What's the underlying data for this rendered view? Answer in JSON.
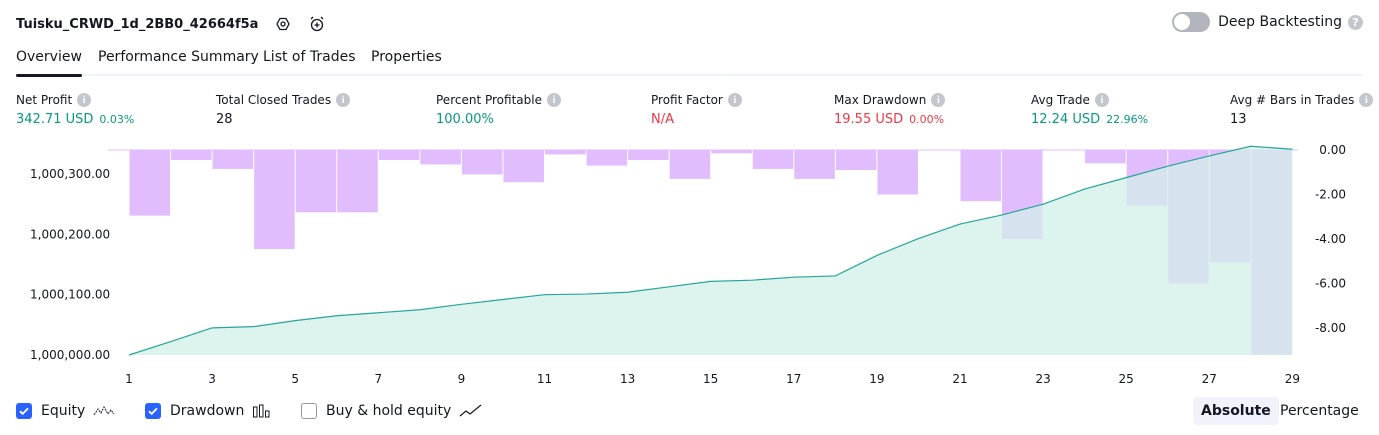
{
  "header": {
    "title": "Tuisku_CRWD_1d_2BB0_42664f5a",
    "deep_backtesting_label": "Deep Backtesting",
    "deep_backtesting_on": false
  },
  "tabs": [
    {
      "label": "Overview",
      "active": true
    },
    {
      "label": "Performance Summary",
      "active": false
    },
    {
      "label": "List of Trades",
      "active": false
    },
    {
      "label": "Properties",
      "active": false
    }
  ],
  "metrics": [
    {
      "label": "Net Profit",
      "value": "342.71 USD",
      "sub": "0.03%",
      "color": "#089981"
    },
    {
      "label": "Total Closed Trades",
      "value": "28",
      "sub": "",
      "color": "#131722"
    },
    {
      "label": "Percent Profitable",
      "value": "100.00%",
      "sub": "",
      "color": "#089981"
    },
    {
      "label": "Profit Factor",
      "value": "N/A",
      "sub": "",
      "color": "#f23645"
    },
    {
      "label": "Max Drawdown",
      "value": "19.55 USD",
      "sub": "0.00%",
      "color": "#f23645"
    },
    {
      "label": "Avg Trade",
      "value": "12.24 USD",
      "sub": "22.96%",
      "color": "#089981"
    },
    {
      "label": "Avg # Bars in Trades",
      "value": "13",
      "sub": "",
      "color": "#131722"
    }
  ],
  "legend": {
    "equity": {
      "label": "Equity",
      "checked": true
    },
    "drawdown": {
      "label": "Drawdown",
      "checked": true
    },
    "buy_hold": {
      "label": "Buy & hold equity",
      "checked": false
    }
  },
  "scale_toggle": {
    "absolute": "Absolute",
    "percentage": "Percentage",
    "selected": "Absolute"
  },
  "colors": {
    "equity_line": "#26a69a",
    "equity_fill": "#d1efe8",
    "drawdown_bar": "#e1bdfd",
    "accent": "#2962ff"
  },
  "chart_data": {
    "type": "bar+area",
    "x": [
      1,
      2,
      3,
      4,
      5,
      6,
      7,
      8,
      9,
      10,
      11,
      12,
      13,
      14,
      15,
      16,
      17,
      18,
      19,
      20,
      21,
      22,
      23,
      24,
      25,
      26,
      27,
      28,
      29
    ],
    "x_tick_labels": [
      "1",
      "3",
      "5",
      "7",
      "9",
      "11",
      "13",
      "15",
      "17",
      "19",
      "21",
      "23",
      "25",
      "27",
      "29"
    ],
    "series": [
      {
        "axis": "left",
        "kind": "area",
        "values": [
          1000000,
          1000022,
          1000045,
          1000047,
          1000057,
          1000065,
          1000070,
          1000075,
          1000084,
          1000092,
          1000100,
          1000101,
          1000104,
          1000113,
          1000122,
          1000124,
          1000129,
          1000131,
          1000165,
          1000193,
          1000217,
          1000232,
          1000250,
          1000275,
          1000294,
          1000313,
          1000330,
          1000346,
          1000341
        ]
      },
      {
        "axis": "right",
        "kind": "bar",
        "values": [
          0,
          -2.95,
          -0.45,
          -0.85,
          -4.45,
          -2.8,
          -2.8,
          -0.45,
          -0.65,
          -1.1,
          -1.45,
          -0.2,
          -0.7,
          -0.45,
          -1.3,
          -0.15,
          -0.85,
          -1.3,
          -0.9,
          -2.0,
          0,
          -2.3,
          -4.0,
          0,
          -0.6,
          -2.5,
          -6.0,
          -5.05,
          -9.2
        ]
      }
    ],
    "y_left": {
      "ticks": [
        "1,000,000.00",
        "1,000,100.00",
        "1,000,200.00",
        "1,000,300.00"
      ],
      "range": [
        1000000,
        1000341
      ]
    },
    "y_right": {
      "ticks": [
        "0.00",
        "-2.00",
        "-4.00",
        "-6.00",
        "-8.00"
      ],
      "range": [
        -9.2,
        0
      ]
    }
  }
}
